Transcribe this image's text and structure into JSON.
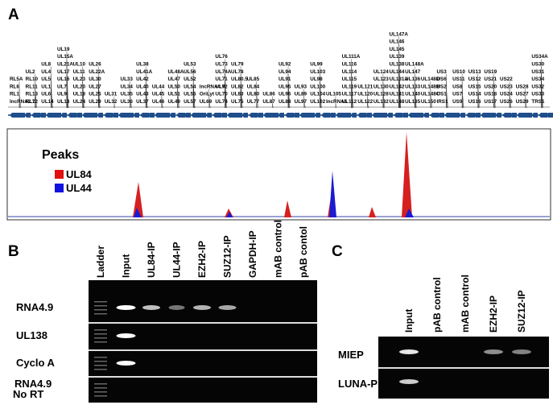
{
  "panel_a": {
    "label": "A",
    "genes": [
      [
        "RL5A",
        "RL6",
        "RL1",
        "lncRNA2.7"
      ],
      [
        "UL2",
        "RL10",
        "RL11",
        "RL13",
        "RL12"
      ],
      [
        "UL8",
        "UL4",
        "UL5",
        "UL1",
        "UL6",
        "UL14"
      ],
      [
        "UL19",
        "UL15A",
        "UL21A",
        "UL17",
        "UL16",
        "UL7",
        "UL9",
        "UL13"
      ],
      [
        "UL10",
        "UL11",
        "UL23",
        "UL20",
        "UL18",
        "UL24"
      ],
      [
        "UL26",
        "UL22A",
        "UL30",
        "UL27",
        "UL25",
        "UL29"
      ],
      [
        "UL31",
        "UL32"
      ],
      [
        "UL33",
        "UL34",
        "UL35",
        "UL36"
      ],
      [
        "UL38",
        "UL41A",
        "UL42",
        "UL40",
        "UL43",
        "UL37"
      ],
      [
        "UL44",
        "UL45",
        "UL46"
      ],
      [
        "UL48A",
        "UL47",
        "UL50",
        "UL51",
        "UL49"
      ],
      [
        "UL53",
        "UL56",
        "UL52",
        "UL54",
        "UL55",
        "UL57"
      ],
      [
        "lncRNA4.9",
        "OriLyt",
        "UL69"
      ],
      [
        "UL76",
        "UL73",
        "UL74A",
        "UL71",
        "UL72",
        "UL70",
        "UL74"
      ],
      [
        "UL79",
        "UL78",
        "UL80.5",
        "UL82",
        "UL83",
        "UL75"
      ],
      [
        "UL85",
        "UL84",
        "UL80",
        "UL77"
      ],
      [
        "UL86",
        "UL87"
      ],
      [
        "UL92",
        "UL94",
        "UL91",
        "UL95",
        "UL96",
        "UL88"
      ],
      [
        "UL93",
        "UL89",
        "UL97"
      ],
      [
        "UL99",
        "UL103",
        "UL98",
        "UL100",
        "UL104",
        "UL102"
      ],
      [
        "UL105",
        "lncRNA5"
      ],
      [
        "UL111A",
        "UL116",
        "UL114",
        "UL115",
        "UL119",
        "UL117",
        "UL112"
      ],
      [
        "UL121",
        "UL120",
        "UL122"
      ],
      [
        "UL124",
        "UL123",
        "UL130",
        "UL128",
        "UL132"
      ],
      [
        "UL147A",
        "UL146",
        "UL145",
        "UL139",
        "UL138",
        "UL144",
        "UL131A",
        "UL142",
        "UL141",
        "UL148"
      ],
      [
        "UL148A",
        "UL147",
        "UL136",
        "UL133",
        "UL140",
        "UL135"
      ],
      [
        "UL148D",
        "UL148B",
        "UL148C",
        "UL150"
      ],
      [
        "US3",
        "US6",
        "US2",
        "US1",
        "IRS1"
      ],
      [
        "US10",
        "US11",
        "US8",
        "US7",
        "US9"
      ],
      [
        "US13",
        "US12",
        "US15",
        "US14",
        "US16"
      ],
      [
        "US19",
        "US21",
        "US20",
        "US18",
        "US17"
      ],
      [
        "US22",
        "US23",
        "US24",
        "US26"
      ],
      [
        "US28",
        "US27",
        "US29"
      ],
      [
        "US34A",
        "US30",
        "US31",
        "US34",
        "US32",
        "US33",
        "TRS1"
      ]
    ],
    "legend_title": "Peaks",
    "legend": [
      "UL84",
      "UL44"
    ]
  },
  "panel_b": {
    "label": "B",
    "lanes": [
      "Ladder",
      "Input",
      "UL84-IP",
      "UL44-IP",
      "EZH2-IP",
      "SUZ12-IP",
      "GAPDH-IP",
      "mAB control",
      "pAB contol"
    ],
    "rows": [
      "RNA4.9",
      "UL138",
      "Cyclo A",
      "RNA4.9 No RT"
    ]
  },
  "panel_c": {
    "label": "C",
    "lanes": [
      "Input",
      "pAB control",
      "mAB control",
      "EZH2-IP",
      "SUZ12-IP"
    ],
    "rows": [
      "MIEP",
      "LUNA-Pr"
    ]
  }
}
